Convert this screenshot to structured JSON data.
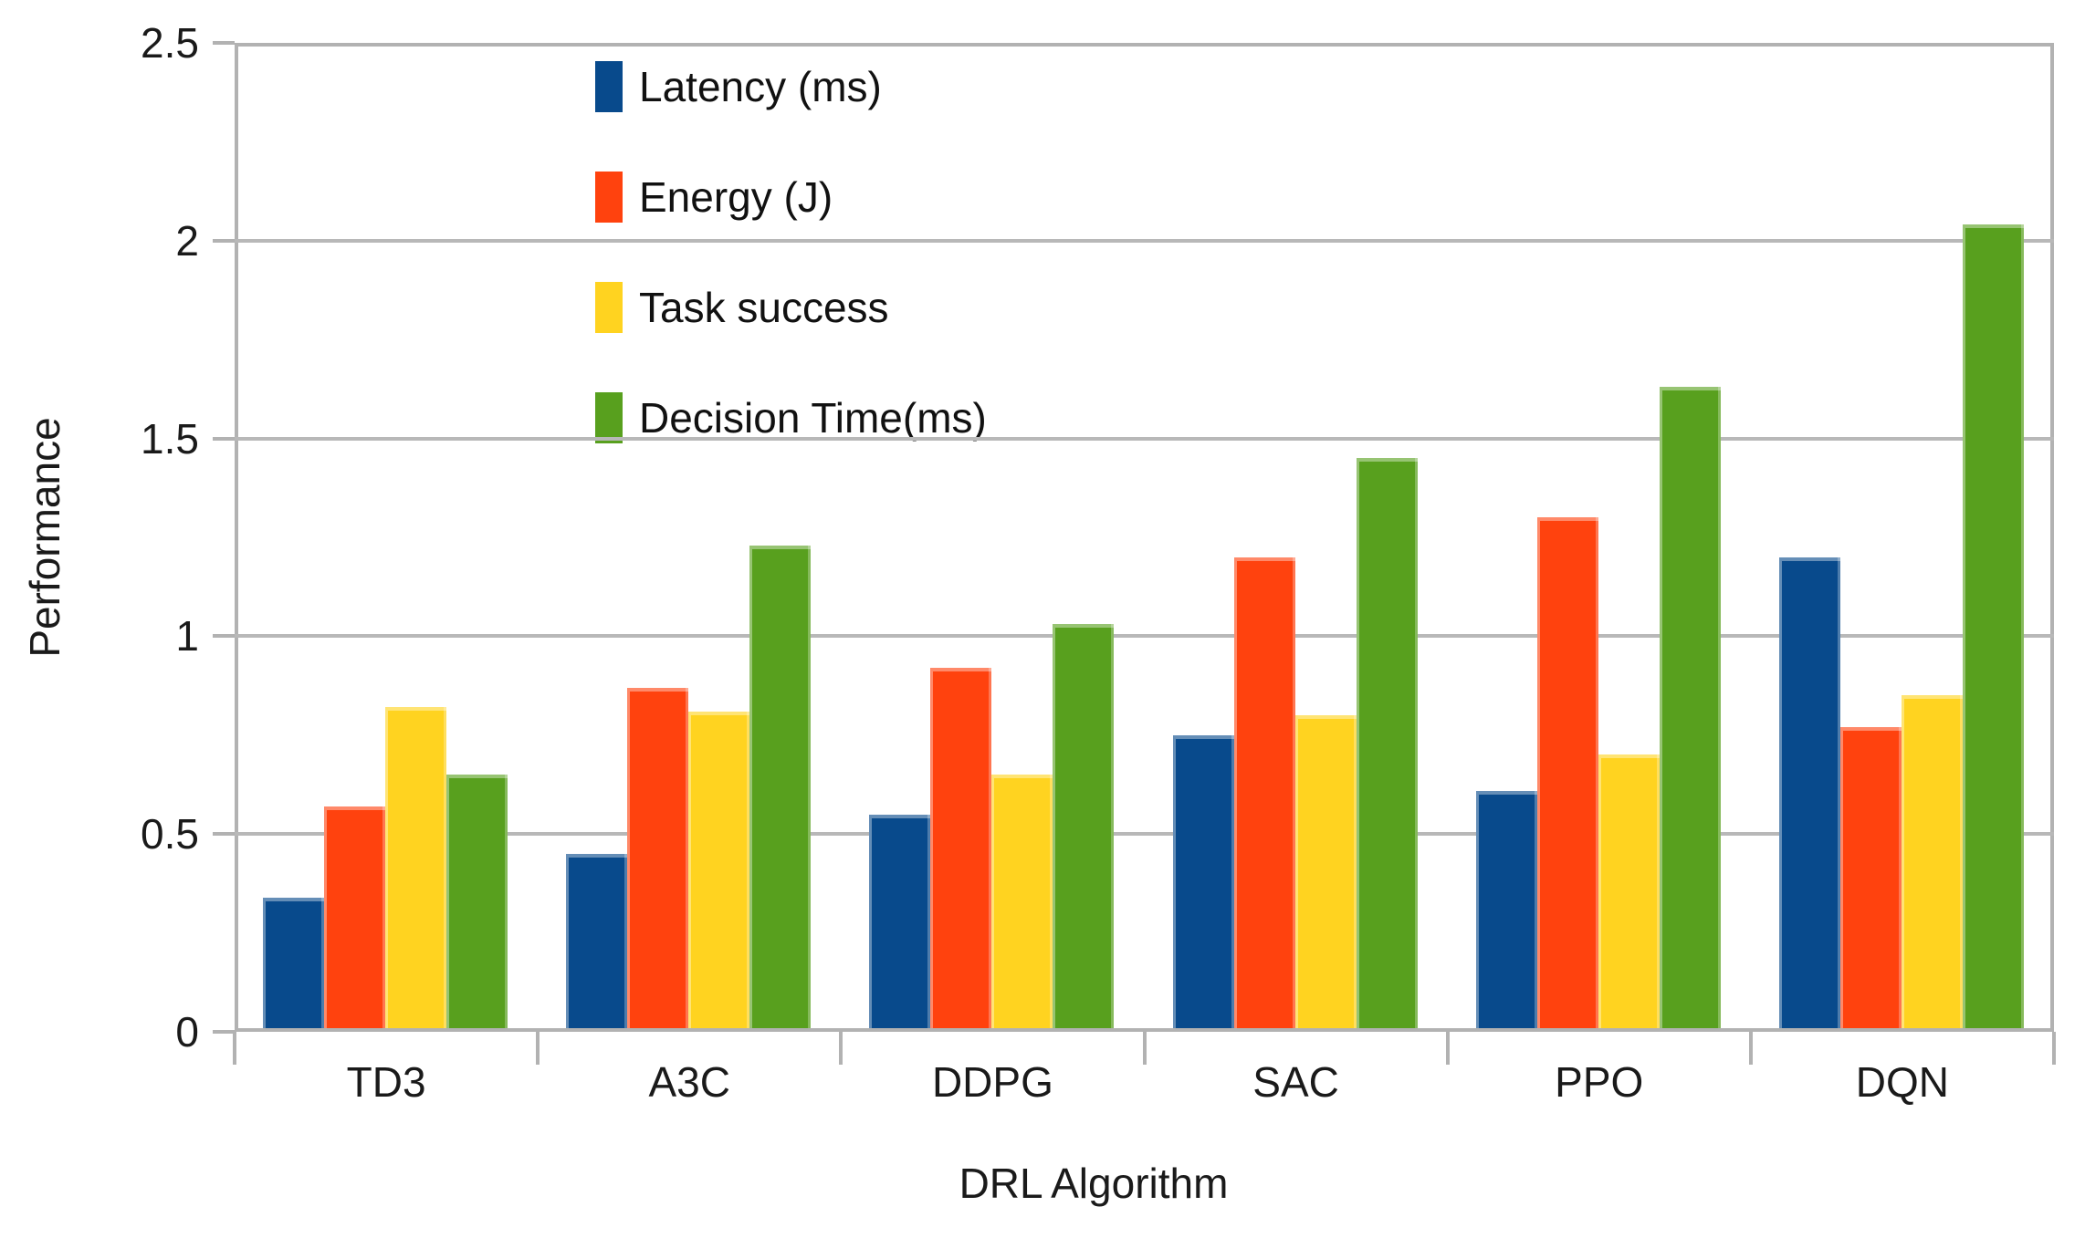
{
  "chart_data": {
    "type": "bar",
    "title": "",
    "xlabel": "DRL Algorithm",
    "ylabel": "Performance",
    "categories": [
      "TD3",
      "A3C",
      "DDPG",
      "SAC",
      "PPO",
      "DQN"
    ],
    "series": [
      {
        "name": "Latency (ms)",
        "color": "#084A8C",
        "values": [
          0.34,
          0.45,
          0.55,
          0.75,
          0.61,
          1.2
        ]
      },
      {
        "name": "Energy (J)",
        "color": "#FF420E",
        "values": [
          0.57,
          0.87,
          0.92,
          1.2,
          1.3,
          0.77
        ]
      },
      {
        "name": "Task success",
        "color": "#FFD320",
        "values": [
          0.82,
          0.81,
          0.65,
          0.8,
          0.7,
          0.85
        ]
      },
      {
        "name": "Decision Time(ms)",
        "color": "#58A01E",
        "values": [
          0.65,
          1.23,
          1.03,
          1.45,
          1.63,
          2.04
        ]
      }
    ],
    "ylim": [
      0,
      2.5
    ],
    "ytick_step": 0.5,
    "ytick_labels": [
      "0",
      "0.5",
      "1",
      "1.5",
      "2",
      "2.5"
    ],
    "grid": true,
    "legend_position": "top-left-inside"
  },
  "colors": {
    "gridline": "#b8b8b8",
    "axis": "#b2b2b2",
    "text": "#1a1a1a",
    "background": "#ffffff"
  }
}
